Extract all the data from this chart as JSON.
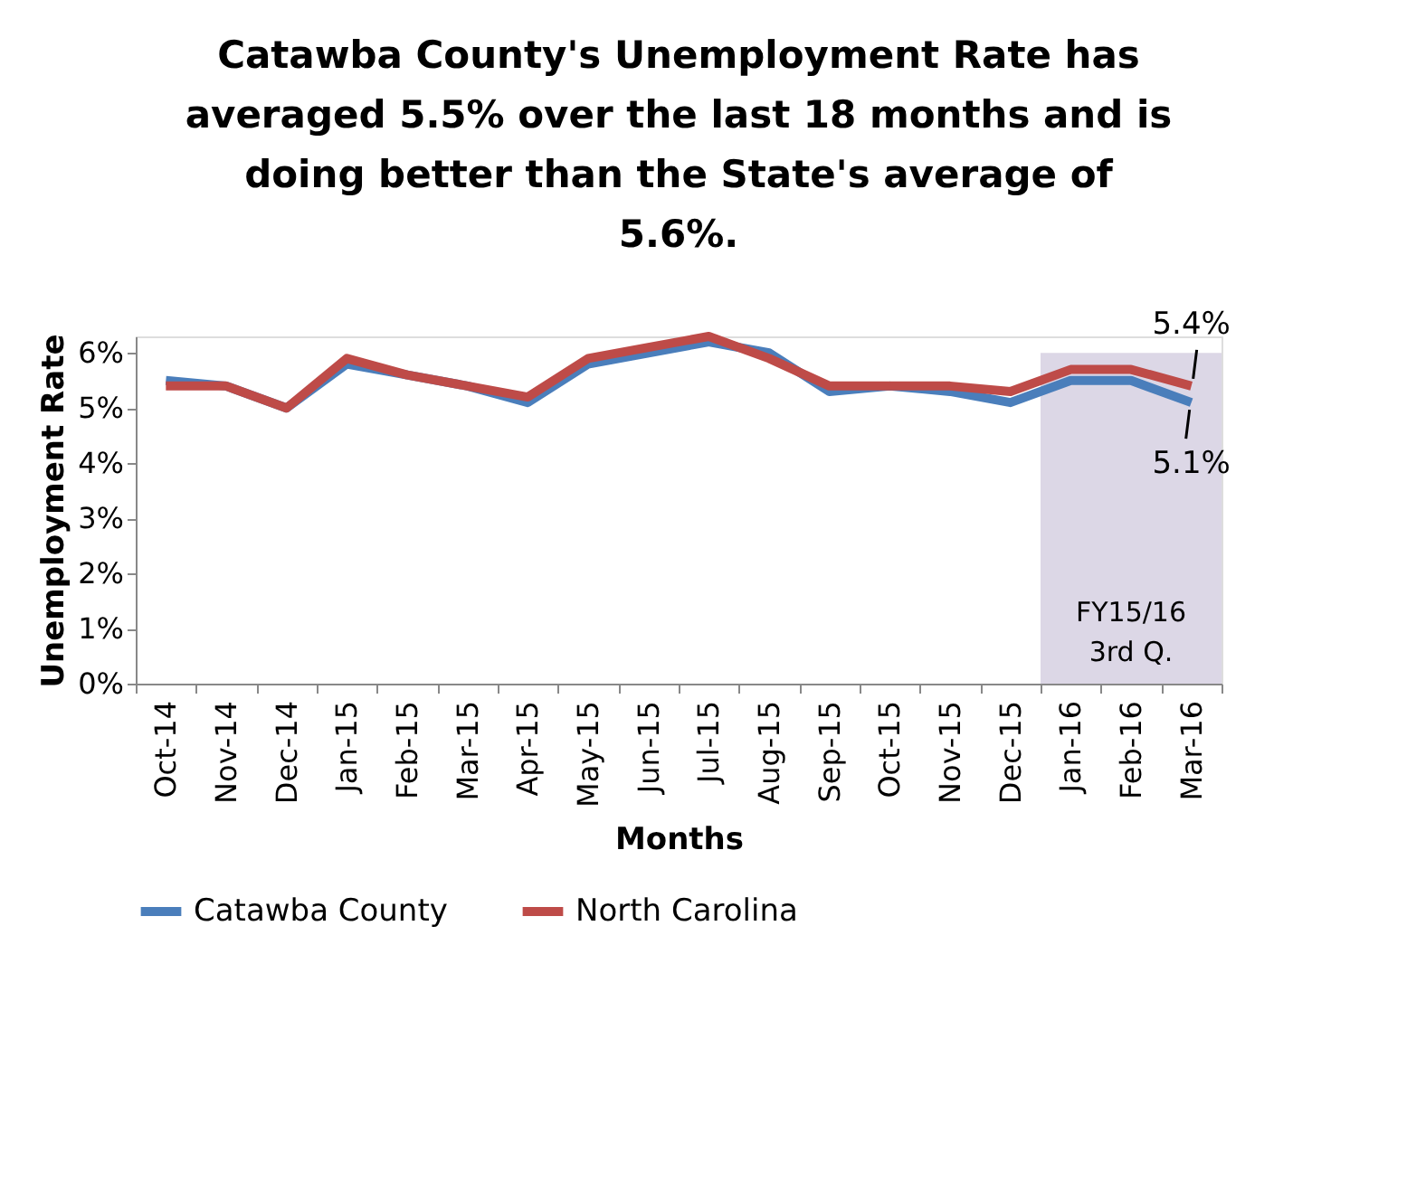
{
  "chart_data": {
    "type": "line",
    "title": [
      "Catawba County's Unemployment Rate has",
      "averaged 5.5% over the last 18 months and is",
      "doing better than the State's average of",
      "5.6%."
    ],
    "xlabel": "Months",
    "ylabel": "Unemployment Rate",
    "categories": [
      "Oct-14",
      "Nov-14",
      "Dec-14",
      "Jan-15",
      "Feb-15",
      "Mar-15",
      "Apr-15",
      "May-15",
      "Jun-15",
      "Jul-15",
      "Aug-15",
      "Sep-15",
      "Oct-15",
      "Nov-15",
      "Dec-15",
      "Jan-16",
      "Feb-16",
      "Mar-16"
    ],
    "series": [
      {
        "name": "Catawba County",
        "color": "#4a7ebb",
        "values": [
          5.5,
          5.4,
          5.0,
          5.8,
          5.6,
          5.4,
          5.1,
          5.8,
          6.0,
          6.2,
          6.0,
          5.3,
          5.4,
          5.3,
          5.1,
          5.5,
          5.5,
          5.1
        ]
      },
      {
        "name": "North Carolina",
        "color": "#be4b48",
        "values": [
          5.4,
          5.4,
          5.0,
          5.9,
          5.6,
          5.4,
          5.2,
          5.9,
          6.1,
          6.3,
          5.9,
          5.4,
          5.4,
          5.4,
          5.3,
          5.7,
          5.7,
          5.4
        ]
      }
    ],
    "ylim": [
      0,
      6.3
    ],
    "yticks": [
      {
        "value": 0,
        "label": "0%"
      },
      {
        "value": 1,
        "label": "1%"
      },
      {
        "value": 2,
        "label": "2%"
      },
      {
        "value": 3,
        "label": "3%"
      },
      {
        "value": 4,
        "label": "4%"
      },
      {
        "value": 5,
        "label": "5%"
      },
      {
        "value": 6,
        "label": "6%"
      }
    ],
    "bands": [
      {
        "axis": "x",
        "from": "Jan-16",
        "to": "Mar-16",
        "label": "FY15/16\n3rd Q.",
        "color": "#dcd7e6"
      }
    ],
    "annotations": [
      {
        "text": "5.4%",
        "x": "Mar-16",
        "y": 5.4
      },
      {
        "text": "5.1%",
        "x": "Mar-16",
        "y": 5.1
      }
    ],
    "legend": "bottom",
    "grid": false,
    "marker": "none",
    "line_style": "solid"
  }
}
